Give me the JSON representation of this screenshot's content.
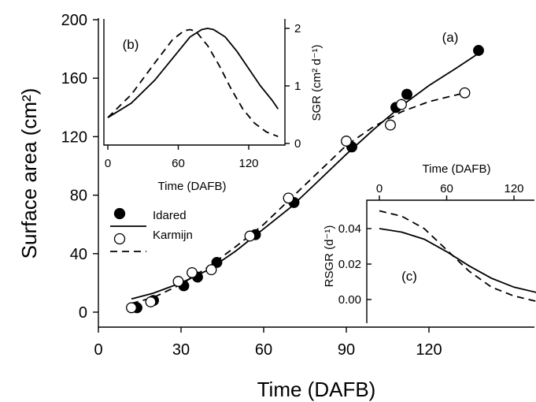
{
  "chart_data": [
    {
      "panel": "(a)",
      "type": "scatter",
      "xlabel": "Time (DAFB)",
      "ylabel": "Surface area (cm²)",
      "xlim": [
        0,
        145
      ],
      "ylim": [
        -10,
        200
      ],
      "xticks": [
        "0",
        "30",
        "60",
        "90",
        "120"
      ],
      "yticks": [
        "0",
        "40",
        "80",
        "120",
        "160",
        "200"
      ],
      "legend": {
        "position": "left-middle",
        "entries": [
          "Idared",
          "Karmijn"
        ]
      },
      "series": [
        {
          "name": "Idared",
          "marker": "filled-circle",
          "line": "solid",
          "points": [
            [
              14,
              3
            ],
            [
              20,
              8
            ],
            [
              31,
              18
            ],
            [
              36,
              24
            ],
            [
              43,
              34
            ],
            [
              57,
              53
            ],
            [
              71,
              75
            ],
            [
              92,
              113
            ],
            [
              108,
              140
            ],
            [
              112,
              149
            ],
            [
              138,
              179
            ]
          ],
          "fit": [
            [
              12,
              9
            ],
            [
              20,
              13
            ],
            [
              30,
              20
            ],
            [
              40,
              29
            ],
            [
              50,
              42
            ],
            [
              60,
              57
            ],
            [
              70,
              72
            ],
            [
              80,
              90
            ],
            [
              90,
              108
            ],
            [
              100,
              125
            ],
            [
              110,
              141
            ],
            [
              120,
              155
            ],
            [
              130,
              167
            ],
            [
              138,
              177
            ]
          ]
        },
        {
          "name": "Karmijn",
          "marker": "open-circle",
          "line": "dashed",
          "points": [
            [
              12,
              3
            ],
            [
              19,
              7
            ],
            [
              29,
              21
            ],
            [
              34,
              27
            ],
            [
              41,
              29
            ],
            [
              55,
              52
            ],
            [
              69,
              78
            ],
            [
              90,
              117
            ],
            [
              106,
              128
            ],
            [
              110,
              142
            ],
            [
              133,
              150
            ]
          ],
          "fit": [
            [
              12,
              6
            ],
            [
              20,
              10
            ],
            [
              30,
              19
            ],
            [
              40,
              31
            ],
            [
              50,
              45
            ],
            [
              60,
              60
            ],
            [
              70,
              78
            ],
            [
              80,
              96
            ],
            [
              90,
              114
            ],
            [
              100,
              127
            ],
            [
              110,
              137
            ],
            [
              120,
              144
            ],
            [
              133,
              150
            ]
          ]
        }
      ]
    },
    {
      "panel": "(b)",
      "type": "line",
      "xlabel": "Time (DAFB)",
      "ylabel": "SGR (cm² d⁻¹)",
      "xlim": [
        0,
        150
      ],
      "ylim": [
        0,
        2.2
      ],
      "xticks": [
        "0",
        "60",
        "120"
      ],
      "yticks": [
        "0",
        "1",
        "2"
      ],
      "series": [
        {
          "name": "Idared",
          "line": "solid",
          "x": [
            0,
            20,
            40,
            60,
            70,
            80,
            85,
            90,
            100,
            110,
            120,
            130,
            140,
            145
          ],
          "y": [
            0.45,
            0.7,
            1.1,
            1.6,
            1.85,
            1.98,
            2.0,
            1.98,
            1.85,
            1.6,
            1.3,
            1.0,
            0.75,
            0.6
          ]
        },
        {
          "name": "Karmijn",
          "line": "dashed",
          "x": [
            0,
            20,
            40,
            55,
            65,
            70,
            75,
            85,
            95,
            105,
            115,
            125,
            135,
            145
          ],
          "y": [
            0.45,
            0.85,
            1.4,
            1.8,
            1.96,
            1.98,
            1.95,
            1.7,
            1.35,
            0.95,
            0.6,
            0.35,
            0.2,
            0.12
          ]
        }
      ]
    },
    {
      "panel": "(c)",
      "type": "line",
      "xlabel": "Time (DAFB)",
      "ylabel": "RSGR (d⁻¹)",
      "xlim": [
        0,
        150
      ],
      "ylim": [
        -0.008,
        0.05
      ],
      "xticks": [
        "0",
        "60",
        "120"
      ],
      "yticks": [
        "0.00",
        "0.02",
        "0.04"
      ],
      "series": [
        {
          "name": "Idared",
          "line": "solid",
          "x": [
            0,
            20,
            40,
            60,
            80,
            100,
            120,
            140,
            150
          ],
          "y": [
            0.04,
            0.038,
            0.034,
            0.027,
            0.019,
            0.012,
            0.007,
            0.004,
            0.003
          ]
        },
        {
          "name": "Karmijn",
          "line": "dashed",
          "x": [
            0,
            20,
            40,
            60,
            80,
            100,
            120,
            140,
            150
          ],
          "y": [
            0.05,
            0.047,
            0.04,
            0.028,
            0.016,
            0.007,
            0.002,
            -0.001,
            -0.002
          ]
        }
      ]
    }
  ]
}
